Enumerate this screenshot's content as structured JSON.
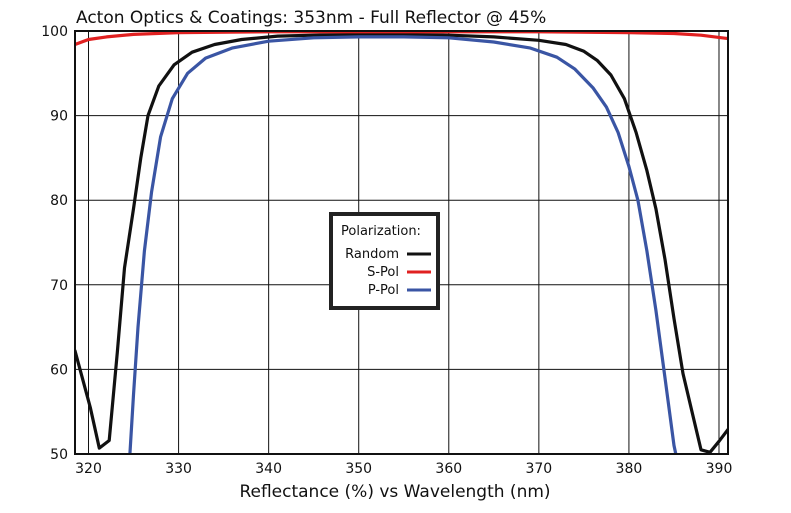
{
  "chart_data": {
    "type": "line",
    "title": "Acton Optics & Coatings:  353nm - Full Reflector @ 45%",
    "xlabel": "Reflectance (%)  vs  Wavelength (nm)",
    "ylabel": "",
    "xlim": [
      318.5,
      391
    ],
    "ylim": [
      50,
      100
    ],
    "xticks": [
      320,
      330,
      340,
      350,
      360,
      370,
      380,
      390
    ],
    "yticks": [
      50,
      60,
      70,
      80,
      90,
      100
    ],
    "grid": true,
    "legend": {
      "title": "Polarization:",
      "placement": "center"
    },
    "series": [
      {
        "name": "Random",
        "color": "#111111",
        "points": [
          [
            318.5,
            62.2
          ],
          [
            320.2,
            55.5
          ],
          [
            321.2,
            50.7
          ],
          [
            322.3,
            51.6
          ],
          [
            323.2,
            62.0
          ],
          [
            324.0,
            72.0
          ],
          [
            325.0,
            79.0
          ],
          [
            325.8,
            85.0
          ],
          [
            326.6,
            90.0
          ],
          [
            327.8,
            93.5
          ],
          [
            329.5,
            96.0
          ],
          [
            331.5,
            97.5
          ],
          [
            334.0,
            98.4
          ],
          [
            337.0,
            99.0
          ],
          [
            341.0,
            99.4
          ],
          [
            345.0,
            99.5
          ],
          [
            350.0,
            99.6
          ],
          [
            355.0,
            99.6
          ],
          [
            360.0,
            99.5
          ],
          [
            365.0,
            99.3
          ],
          [
            370.0,
            98.9
          ],
          [
            373.0,
            98.4
          ],
          [
            375.0,
            97.6
          ],
          [
            376.5,
            96.5
          ],
          [
            378.0,
            94.8
          ],
          [
            379.5,
            92.0
          ],
          [
            380.8,
            88.0
          ],
          [
            382.0,
            83.5
          ],
          [
            383.0,
            79.0
          ],
          [
            384.0,
            73.0
          ],
          [
            385.0,
            66.0
          ],
          [
            386.0,
            59.5
          ],
          [
            387.0,
            55.0
          ],
          [
            388.0,
            50.5
          ],
          [
            389.0,
            50.2
          ],
          [
            390.0,
            51.5
          ],
          [
            391.0,
            52.9
          ]
        ]
      },
      {
        "name": "S-Pol",
        "color": "#e02020",
        "points": [
          [
            318.5,
            98.4
          ],
          [
            320.0,
            99.0
          ],
          [
            322.0,
            99.3
          ],
          [
            325.0,
            99.6
          ],
          [
            330.0,
            99.8
          ],
          [
            340.0,
            99.9
          ],
          [
            350.0,
            99.9
          ],
          [
            360.0,
            99.9
          ],
          [
            370.0,
            99.9
          ],
          [
            380.0,
            99.8
          ],
          [
            385.0,
            99.7
          ],
          [
            388.0,
            99.5
          ],
          [
            391.0,
            99.1
          ]
        ]
      },
      {
        "name": "P-Pol",
        "color": "#3a55a4",
        "points": [
          [
            324.6,
            50.0
          ],
          [
            325.0,
            57.0
          ],
          [
            325.5,
            65.0
          ],
          [
            326.2,
            74.0
          ],
          [
            327.0,
            81.0
          ],
          [
            328.0,
            87.5
          ],
          [
            329.3,
            92.0
          ],
          [
            331.0,
            95.0
          ],
          [
            333.0,
            96.8
          ],
          [
            336.0,
            98.0
          ],
          [
            340.0,
            98.8
          ],
          [
            345.0,
            99.2
          ],
          [
            350.0,
            99.3
          ],
          [
            355.0,
            99.3
          ],
          [
            360.0,
            99.2
          ],
          [
            365.0,
            98.7
          ],
          [
            369.0,
            98.0
          ],
          [
            372.0,
            96.9
          ],
          [
            374.0,
            95.5
          ],
          [
            376.0,
            93.3
          ],
          [
            377.5,
            91.0
          ],
          [
            378.8,
            88.0
          ],
          [
            380.0,
            84.0
          ],
          [
            381.0,
            80.0
          ],
          [
            382.0,
            74.0
          ],
          [
            383.0,
            67.0
          ],
          [
            384.0,
            59.0
          ],
          [
            385.0,
            51.0
          ],
          [
            385.2,
            50.0
          ]
        ]
      }
    ]
  }
}
